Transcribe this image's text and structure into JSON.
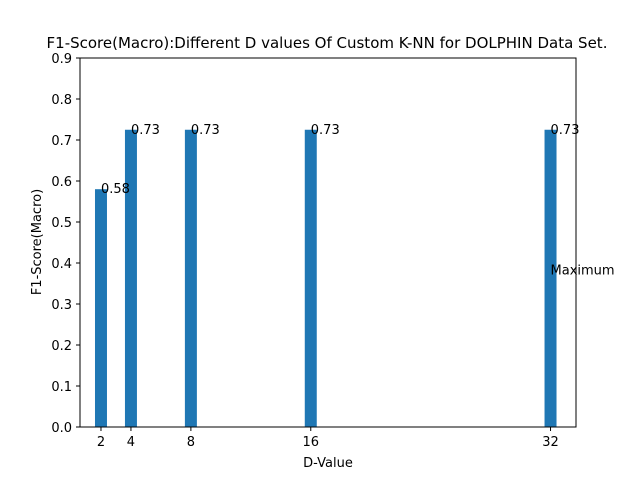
{
  "chart_data": {
    "type": "bar",
    "title": "F1-Score(Macro):Different D values Of Custom K-NN for DOLPHIN Data Set.",
    "xlabel": "D-Value",
    "ylabel": "F1-Score(Macro)",
    "x": [
      2,
      4,
      8,
      16,
      32
    ],
    "values": [
      0.58,
      0.725,
      0.725,
      0.725,
      0.725
    ],
    "data_labels": [
      "0.58",
      "0.73",
      "0.73",
      "0.73",
      "0.73"
    ],
    "xticks": [
      "2",
      "4",
      "8",
      "16",
      "32"
    ],
    "yticks": [
      "0.0",
      "0.1",
      "0.2",
      "0.3",
      "0.4",
      "0.5",
      "0.6",
      "0.7",
      "0.8",
      "0.9"
    ],
    "xlim": [
      0.6,
      33.7
    ],
    "ylim": [
      0,
      0.9
    ],
    "bar_width": 0.8,
    "annotation": {
      "text": "Maximum",
      "x": 32,
      "y": 0.362
    },
    "grid": false,
    "colors": {
      "bar": "#1f77b4",
      "axis": "#000000",
      "background": "#ffffff"
    }
  }
}
